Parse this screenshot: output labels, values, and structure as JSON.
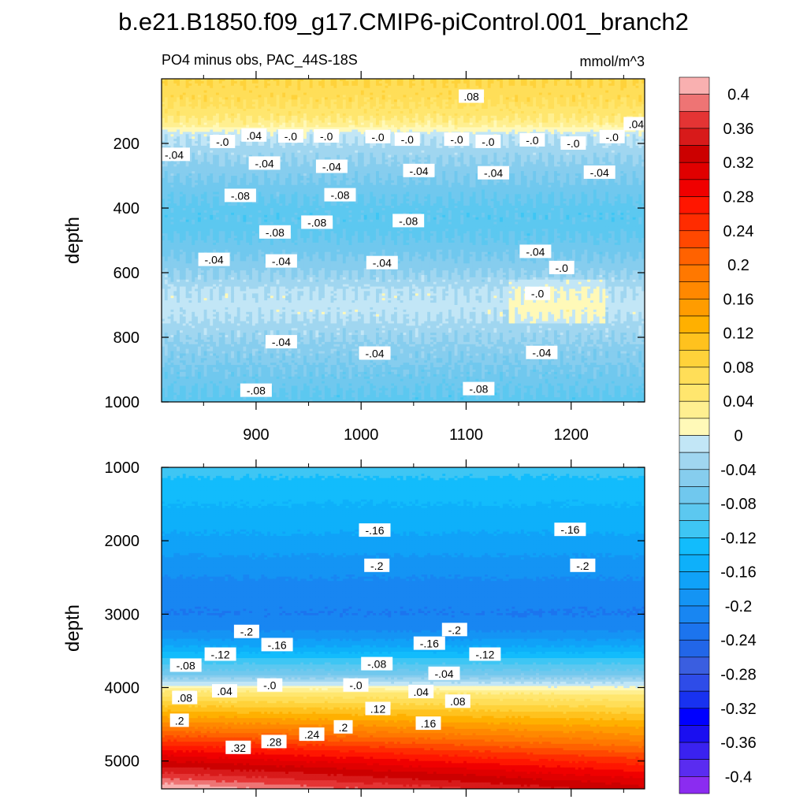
{
  "chart_data": {
    "type": "heatmap",
    "title": "b.e21.B1850.f09_g17.CMIP6-piControl.001_branch2",
    "subtitle": "PO4 minus obs, PAC_44S-18S",
    "units": "mmol/m^3",
    "ylabel": "depth",
    "xlim": [
      810,
      1270
    ],
    "x_ticks": [
      "900",
      "1000",
      "1100",
      "1200"
    ],
    "x_tick_values": [
      900,
      1000,
      1100,
      1200
    ],
    "colorbar": {
      "levels": [
        -0.42,
        -0.4,
        -0.38,
        -0.36,
        -0.34,
        -0.32,
        -0.3,
        -0.28,
        -0.26,
        -0.24,
        -0.22,
        -0.2,
        -0.18,
        -0.16,
        -0.14,
        -0.12,
        -0.1,
        -0.08,
        -0.06,
        -0.04,
        -0.02,
        0.0,
        0.02,
        0.04,
        0.06,
        0.08,
        0.1,
        0.12,
        0.14,
        0.16,
        0.18,
        0.2,
        0.22,
        0.24,
        0.26,
        0.28,
        0.3,
        0.32,
        0.34,
        0.36,
        0.38,
        0.4,
        0.42
      ],
      "colors": [
        "#8b2cf0",
        "#5a2cf0",
        "#3a22f0",
        "#1a0ff0",
        "#0000ff",
        "#1832f0",
        "#2e4ce8",
        "#3a5ee0",
        "#2266e8",
        "#1c74ee",
        "#1886f2",
        "#1494f4",
        "#10a2f8",
        "#0eb0fa",
        "#12bcfc",
        "#3ec6f4",
        "#5cc8f0",
        "#70c8ee",
        "#86cdee",
        "#a0d6f0",
        "#c2e6f6",
        "#fff9b8",
        "#ffef90",
        "#ffe66e",
        "#ffde58",
        "#ffd23a",
        "#ffc21e",
        "#ffb000",
        "#ff9c00",
        "#ff8800",
        "#ff7800",
        "#ff6200",
        "#ff4800",
        "#ff2c00",
        "#ff1600",
        "#f00000",
        "#e00000",
        "#cc0000",
        "#d81a1a",
        "#e43434",
        "#ee7474",
        "#f9b0b0"
      ],
      "tick_labels": [
        "0.4",
        "0.36",
        "0.32",
        "0.28",
        "0.24",
        "0.2",
        "0.16",
        "0.12",
        "0.08",
        "0.04",
        "0",
        "-0.04",
        "-0.08",
        "-0.12",
        "-0.16",
        "-0.2",
        "-0.24",
        "-0.28",
        "-0.32",
        "-0.36",
        "-0.4"
      ],
      "tick_values": [
        0.4,
        0.36,
        0.32,
        0.28,
        0.24,
        0.2,
        0.16,
        0.12,
        0.08,
        0.04,
        0.0,
        -0.04,
        -0.08,
        -0.12,
        -0.16,
        -0.2,
        -0.24,
        -0.28,
        -0.32,
        -0.36,
        -0.4
      ]
    },
    "panels": [
      {
        "name": "upper",
        "ylim": [
          1000,
          0
        ],
        "y_ticks": [
          "200",
          "400",
          "600",
          "800",
          "1000"
        ],
        "y_tick_values": [
          200,
          400,
          600,
          800,
          1000
        ],
        "profile": [
          {
            "depth": 0,
            "value": 0.08
          },
          {
            "depth": 60,
            "value": 0.07
          },
          {
            "depth": 110,
            "value": 0.05
          },
          {
            "depth": 150,
            "value": 0.02
          },
          {
            "depth": 170,
            "value": -0.01
          },
          {
            "depth": 200,
            "value": -0.02
          },
          {
            "depth": 240,
            "value": -0.035
          },
          {
            "depth": 300,
            "value": -0.055
          },
          {
            "depth": 360,
            "value": -0.075
          },
          {
            "depth": 420,
            "value": -0.09
          },
          {
            "depth": 480,
            "value": -0.085
          },
          {
            "depth": 540,
            "value": -0.065
          },
          {
            "depth": 600,
            "value": -0.04
          },
          {
            "depth": 660,
            "value": -0.015
          },
          {
            "depth": 720,
            "value": -0.012
          },
          {
            "depth": 780,
            "value": -0.03
          },
          {
            "depth": 850,
            "value": -0.05
          },
          {
            "depth": 920,
            "value": -0.07
          },
          {
            "depth": 1000,
            "value": -0.09
          }
        ],
        "contour_labels": [
          {
            "text": ".08",
            "x": 1105,
            "d": 55
          },
          {
            "text": ".04",
            "x": 1262,
            "d": 140
          },
          {
            "text": "-.04",
            "x": 822,
            "d": 235
          },
          {
            "text": "-.0",
            "x": 868,
            "d": 195
          },
          {
            "text": ".04",
            "x": 898,
            "d": 175
          },
          {
            "text": "-.0",
            "x": 933,
            "d": 178
          },
          {
            "text": "-.0",
            "x": 967,
            "d": 178
          },
          {
            "text": "-.0",
            "x": 1016,
            "d": 180
          },
          {
            "text": "-.0",
            "x": 1044,
            "d": 188
          },
          {
            "text": "-.0",
            "x": 1091,
            "d": 188
          },
          {
            "text": "-.0",
            "x": 1121,
            "d": 195
          },
          {
            "text": "-.0",
            "x": 1163,
            "d": 190
          },
          {
            "text": "-.0",
            "x": 1202,
            "d": 200
          },
          {
            "text": "-.0",
            "x": 1239,
            "d": 180
          },
          {
            "text": "-.04",
            "x": 908,
            "d": 262
          },
          {
            "text": "-.04",
            "x": 972,
            "d": 272
          },
          {
            "text": "-.04",
            "x": 1055,
            "d": 285
          },
          {
            "text": "-.04",
            "x": 1126,
            "d": 292
          },
          {
            "text": "-.04",
            "x": 1227,
            "d": 290
          },
          {
            "text": "-.08",
            "x": 885,
            "d": 362
          },
          {
            "text": "-.08",
            "x": 980,
            "d": 360
          },
          {
            "text": "-.08",
            "x": 958,
            "d": 445
          },
          {
            "text": "-.08",
            "x": 1045,
            "d": 440
          },
          {
            "text": "-.08",
            "x": 918,
            "d": 475
          },
          {
            "text": "-.04",
            "x": 860,
            "d": 560
          },
          {
            "text": "-.04",
            "x": 924,
            "d": 565
          },
          {
            "text": "-.04",
            "x": 1020,
            "d": 570
          },
          {
            "text": "-.04",
            "x": 1166,
            "d": 535
          },
          {
            "text": "-.0",
            "x": 1191,
            "d": 585
          },
          {
            "text": "-.0",
            "x": 1168,
            "d": 665
          },
          {
            "text": "-.04",
            "x": 924,
            "d": 815
          },
          {
            "text": "-.04",
            "x": 1013,
            "d": 850
          },
          {
            "text": "-.04",
            "x": 1172,
            "d": 848
          },
          {
            "text": "-.08",
            "x": 900,
            "d": 965
          },
          {
            "text": "-.08",
            "x": 1112,
            "d": 960
          }
        ]
      },
      {
        "name": "lower",
        "ylim": [
          1000,
          5380
        ],
        "y_ticks": [
          "1000",
          "2000",
          "3000",
          "4000",
          "5000"
        ],
        "y_tick_values": [
          1000,
          2000,
          3000,
          4000,
          5000
        ],
        "profile": [
          {
            "depth": 1000,
            "value": -0.11
          },
          {
            "depth": 1200,
            "value": -0.125
          },
          {
            "depth": 1500,
            "value": -0.14
          },
          {
            "depth": 1900,
            "value": -0.16
          },
          {
            "depth": 2200,
            "value": -0.18
          },
          {
            "depth": 2500,
            "value": -0.2
          },
          {
            "depth": 2800,
            "value": -0.215
          },
          {
            "depth": 3000,
            "value": -0.22
          },
          {
            "depth": 3200,
            "value": -0.205
          },
          {
            "depth": 3400,
            "value": -0.17
          },
          {
            "depth": 3600,
            "value": -0.12
          },
          {
            "depth": 3800,
            "value": -0.07
          },
          {
            "depth": 3950,
            "value": -0.01
          },
          {
            "depth": 4050,
            "value": 0.04
          },
          {
            "depth": 4250,
            "value": 0.1
          },
          {
            "depth": 4500,
            "value": 0.17
          },
          {
            "depth": 4750,
            "value": 0.25
          },
          {
            "depth": 5000,
            "value": 0.32
          },
          {
            "depth": 5200,
            "value": 0.37
          },
          {
            "depth": 5380,
            "value": 0.42
          }
        ],
        "contour_labels": [
          {
            "text": "-.16",
            "x": 1013,
            "d": 1860
          },
          {
            "text": "-.16",
            "x": 1199,
            "d": 1850
          },
          {
            "text": "-.2",
            "x": 1015,
            "d": 2340
          },
          {
            "text": "-.2",
            "x": 1211,
            "d": 2340
          },
          {
            "text": "-.2",
            "x": 891,
            "d": 3240
          },
          {
            "text": "-.2",
            "x": 1089,
            "d": 3215
          },
          {
            "text": "-.16",
            "x": 920,
            "d": 3420
          },
          {
            "text": "-.16",
            "x": 1065,
            "d": 3400
          },
          {
            "text": "-.12",
            "x": 866,
            "d": 3550
          },
          {
            "text": "-.12",
            "x": 1118,
            "d": 3550
          },
          {
            "text": "-.08",
            "x": 833,
            "d": 3700
          },
          {
            "text": "-.08",
            "x": 1015,
            "d": 3680
          },
          {
            "text": "-.04",
            "x": 1079,
            "d": 3810
          },
          {
            "text": "-.0",
            "x": 913,
            "d": 3970
          },
          {
            "text": "-.0",
            "x": 995,
            "d": 3970
          },
          {
            "text": ".04",
            "x": 870,
            "d": 4050
          },
          {
            "text": ".04",
            "x": 1057,
            "d": 4060
          },
          {
            "text": ".08",
            "x": 832,
            "d": 4140
          },
          {
            "text": ".08",
            "x": 1092,
            "d": 4190
          },
          {
            "text": ".12",
            "x": 1016,
            "d": 4290
          },
          {
            "text": ".16",
            "x": 1064,
            "d": 4490
          },
          {
            "text": ".2",
            "x": 827,
            "d": 4450
          },
          {
            "text": ".2",
            "x": 983,
            "d": 4540
          },
          {
            "text": ".24",
            "x": 953,
            "d": 4640
          },
          {
            "text": ".28",
            "x": 917,
            "d": 4740
          },
          {
            "text": ".32",
            "x": 883,
            "d": 4820
          }
        ]
      }
    ]
  }
}
